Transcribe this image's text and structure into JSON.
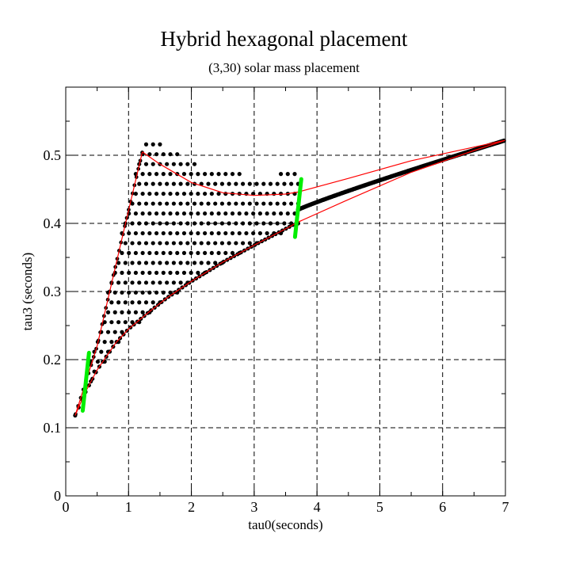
{
  "chart_data": {
    "type": "scatter",
    "title": "Hybrid hexagonal placement",
    "subtitle": "(3,30) solar mass placement",
    "xlabel": "tau0(seconds)",
    "ylabel": "tau3 (seconds)",
    "xlim": [
      0,
      7
    ],
    "ylim": [
      0,
      0.6
    ],
    "xticks": [
      "0",
      "1",
      "2",
      "3",
      "4",
      "5",
      "6",
      "7"
    ],
    "yticks": [
      "0",
      "0.1",
      "0.2",
      "0.3",
      "0.4",
      "0.5"
    ],
    "grid": true,
    "colors": {
      "points": "#000000",
      "boundary": "#ff0000",
      "markers": "#00ee00"
    },
    "boundary": {
      "lower": [
        [
          0.15,
          0.118
        ],
        [
          0.3,
          0.15
        ],
        [
          0.5,
          0.185
        ],
        [
          0.8,
          0.225
        ],
        [
          1.0,
          0.245
        ],
        [
          1.3,
          0.268
        ],
        [
          1.6,
          0.29
        ],
        [
          2.0,
          0.315
        ],
        [
          2.5,
          0.343
        ],
        [
          3.0,
          0.368
        ],
        [
          3.5,
          0.392
        ],
        [
          3.7,
          0.402
        ],
        [
          4.5,
          0.435
        ],
        [
          5.5,
          0.475
        ],
        [
          6.5,
          0.507
        ],
        [
          7.0,
          0.522
        ]
      ],
      "left": [
        [
          0.15,
          0.118
        ],
        [
          0.5,
          0.22
        ],
        [
          0.9,
          0.38
        ],
        [
          1.22,
          0.505
        ]
      ],
      "upper": [
        [
          1.22,
          0.505
        ],
        [
          1.5,
          0.487
        ],
        [
          2.0,
          0.46
        ],
        [
          2.5,
          0.445
        ],
        [
          3.0,
          0.441
        ],
        [
          3.5,
          0.443
        ],
        [
          3.7,
          0.446
        ],
        [
          4.5,
          0.466
        ],
        [
          5.5,
          0.492
        ],
        [
          6.5,
          0.512
        ],
        [
          7.0,
          0.522
        ]
      ]
    },
    "region_points": {
      "x_range": [
        0.18,
        3.75
      ],
      "y_max": 0.525,
      "dx": 0.11,
      "dy": 0.0145
    },
    "line_points": {
      "x_range": [
        3.7,
        7.0
      ],
      "y_start": 0.42,
      "y_end": 0.522
    },
    "markers": [
      {
        "x": [
          0.27,
          0.37
        ],
        "y": [
          0.125,
          0.21
        ]
      },
      {
        "x": [
          3.65,
          3.75
        ],
        "y": [
          0.38,
          0.465
        ]
      }
    ]
  }
}
